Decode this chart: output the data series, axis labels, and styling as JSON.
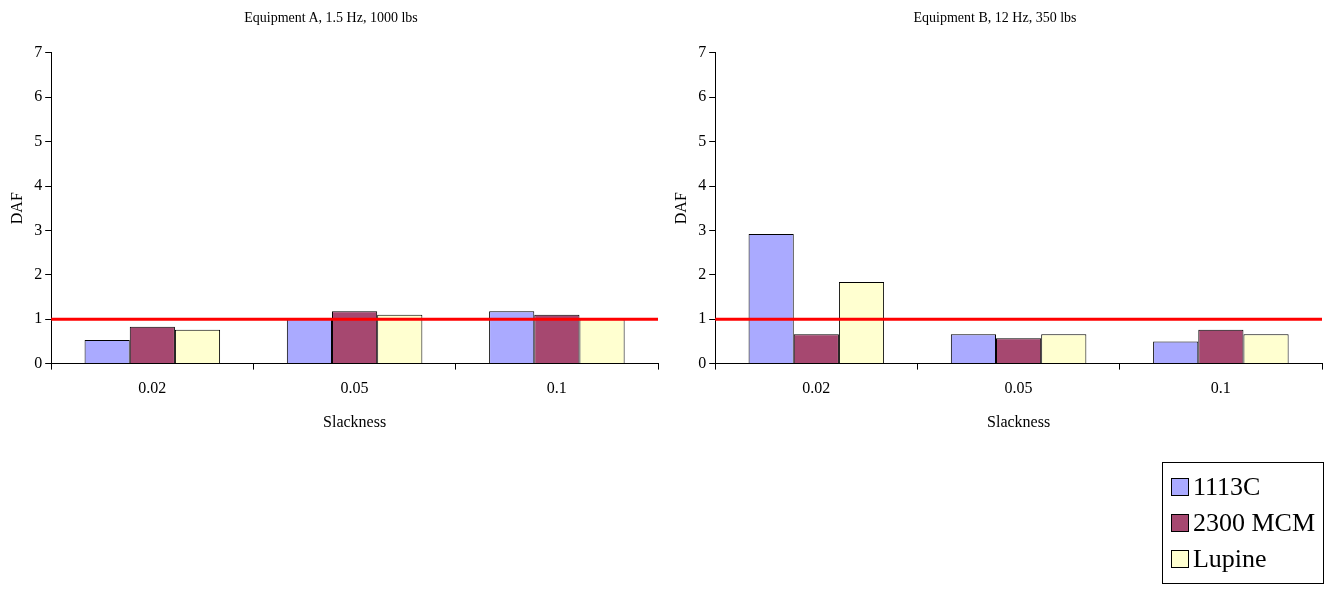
{
  "chart_data": [
    {
      "type": "bar",
      "title": "Equipment A, 1.5 Hz, 1000 lbs",
      "xlabel": "Slackness",
      "ylabel": "DAF",
      "categories": [
        "0.02",
        "0.05",
        "0.1"
      ],
      "series": [
        {
          "color": "#aaaaff",
          "values": [
            0.53,
            1.0,
            1.18
          ]
        },
        {
          "color": "#a64870",
          "values": [
            0.83,
            1.18,
            1.1
          ]
        },
        {
          "color": "#ffffd0",
          "values": [
            0.76,
            1.1,
            1.0
          ]
        }
      ],
      "ylim": [
        0,
        7
      ],
      "yticks": [
        0,
        1,
        2,
        3,
        4,
        5,
        6,
        7
      ],
      "grid": false,
      "legend": false,
      "ref_lines": [
        {
          "axis": "y",
          "value": 1,
          "color": "#ff0000"
        }
      ]
    },
    {
      "type": "bar",
      "title": "Equipment B, 12 Hz, 350 lbs",
      "xlabel": "Slackness",
      "ylabel": "DAF",
      "categories": [
        "0.02",
        "0.05",
        "0.1"
      ],
      "series": [
        {
          "name": "1113C",
          "color": "#aaaaff",
          "values": [
            2.92,
            0.66,
            0.5
          ]
        },
        {
          "name": "2300 MCM",
          "color": "#a64870",
          "values": [
            0.66,
            0.57,
            0.76
          ]
        },
        {
          "name": "Lupine",
          "color": "#ffffd0",
          "values": [
            1.84,
            0.66,
            0.66
          ]
        }
      ],
      "ylim": [
        0,
        7
      ],
      "yticks": [
        0,
        1,
        2,
        3,
        4,
        5,
        6,
        7
      ],
      "grid": false,
      "legend": "bottom right",
      "ref_lines": [
        {
          "axis": "y",
          "value": 1,
          "color": "#ff0000"
        }
      ]
    }
  ]
}
